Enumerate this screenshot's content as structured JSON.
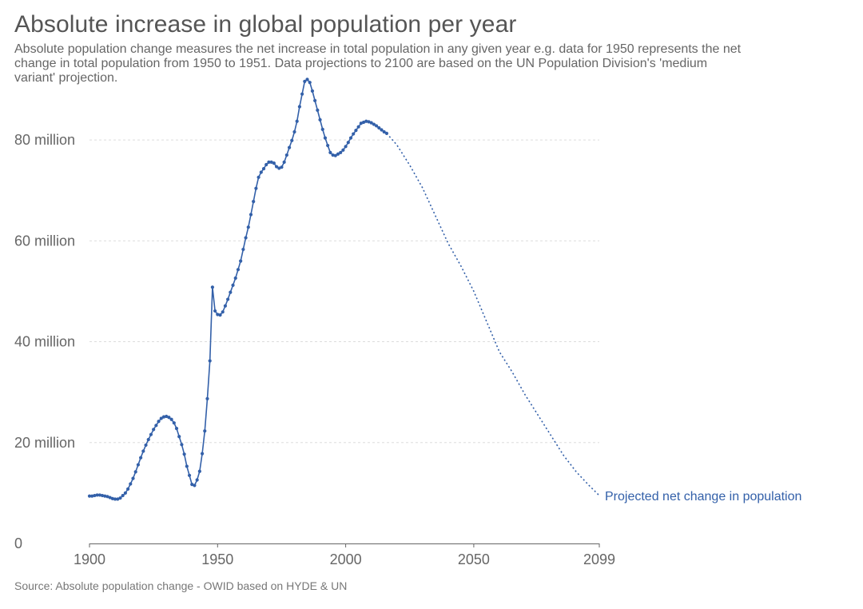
{
  "header": {
    "title": "Absolute increase in global population per year",
    "subtitle": "Absolute population change measures the net increase in total population in any given year e.g. data for 1950 represents the net change in total population from 1950 to 1951. Data projections to 2100 are based on the UN Population Division's 'medium variant' projection."
  },
  "footer": {
    "source": "Source: Absolute population change - OWID based on HYDE & UN"
  },
  "chart_data": {
    "type": "line",
    "title": "Absolute increase in global population per year",
    "xlabel": "",
    "ylabel": "",
    "xlim": [
      1900,
      2099
    ],
    "ylim": [
      0,
      90000000
    ],
    "x_ticks": [
      {
        "value": 1900,
        "label": "1900"
      },
      {
        "value": 1950,
        "label": "1950"
      },
      {
        "value": 2000,
        "label": "2000"
      },
      {
        "value": 2050,
        "label": "2050"
      },
      {
        "value": 2099,
        "label": "2099"
      }
    ],
    "y_ticks": [
      {
        "value": 0,
        "label": "0"
      },
      {
        "value": 20000000,
        "label": "20 million"
      },
      {
        "value": 40000000,
        "label": "40 million"
      },
      {
        "value": 60000000,
        "label": "60 million"
      },
      {
        "value": 80000000,
        "label": "80 million"
      }
    ],
    "grid": true,
    "color": "#3360a9",
    "series": [
      {
        "name": "Projected net change in population",
        "observed": {
          "x": [
            1900,
            1901,
            1902,
            1903,
            1904,
            1905,
            1906,
            1907,
            1908,
            1909,
            1910,
            1911,
            1912,
            1913,
            1914,
            1915,
            1916,
            1917,
            1918,
            1919,
            1920,
            1921,
            1922,
            1923,
            1924,
            1925,
            1926,
            1927,
            1928,
            1929,
            1930,
            1931,
            1932,
            1933,
            1934,
            1935,
            1936,
            1937,
            1938,
            1939,
            1940,
            1941,
            1942,
            1943,
            1944,
            1945,
            1946,
            1947,
            1948,
            1949,
            1950,
            1951,
            1952,
            1953,
            1954,
            1955,
            1956,
            1957,
            1958,
            1959,
            1960,
            1961,
            1962,
            1963,
            1964,
            1965,
            1966,
            1967,
            1968,
            1969,
            1970,
            1971,
            1972,
            1973,
            1974,
            1975,
            1976,
            1977,
            1978,
            1979,
            1980,
            1981,
            1982,
            1983,
            1984,
            1985,
            1986,
            1987,
            1988,
            1989,
            1990,
            1991,
            1992,
            1993,
            1994,
            1995,
            1996,
            1997,
            1998,
            1999,
            2000,
            2001,
            2002,
            2003,
            2004,
            2005,
            2006,
            2007,
            2008,
            2009,
            2010,
            2011,
            2012,
            2013,
            2014,
            2015,
            2016
          ],
          "y": [
            9.4,
            9.4,
            9.5,
            9.6,
            9.6,
            9.5,
            9.4,
            9.3,
            9.1,
            8.9,
            8.8,
            8.8,
            9.0,
            9.5,
            10.0,
            10.8,
            11.8,
            12.9,
            14.2,
            15.6,
            17.0,
            18.3,
            19.5,
            20.6,
            21.6,
            22.6,
            23.4,
            24.2,
            24.8,
            25.1,
            25.2,
            25.0,
            24.6,
            23.9,
            22.8,
            21.2,
            19.6,
            17.7,
            15.3,
            13.5,
            11.7,
            11.5,
            12.6,
            14.3,
            17.8,
            22.3,
            28.7,
            36.2,
            50.8,
            46.1,
            45.4,
            45.3,
            45.9,
            47.1,
            48.4,
            49.8,
            51.2,
            52.6,
            54.3,
            56.0,
            58.3,
            60.6,
            62.7,
            65.2,
            67.8,
            70.4,
            72.6,
            73.6,
            74.3,
            75.1,
            75.6,
            75.6,
            75.4,
            74.7,
            74.4,
            74.6,
            75.6,
            77.0,
            78.5,
            79.9,
            81.6,
            83.7,
            86.6,
            89.1,
            91.6,
            92.0,
            91.4,
            89.7,
            87.8,
            85.9,
            84.0,
            82.1,
            80.4,
            78.9,
            77.5,
            77.0,
            76.9,
            77.2,
            77.5,
            78.0,
            78.7,
            79.5,
            80.4,
            81.2,
            81.9,
            82.6,
            83.3,
            83.5,
            83.7,
            83.6,
            83.4,
            83.1,
            82.8,
            82.4,
            82.0,
            81.6,
            81.3
          ]
        },
        "projected": {
          "x": [
            2016,
            2020,
            2025,
            2030,
            2035,
            2040,
            2045,
            2050,
            2055,
            2060,
            2065,
            2070,
            2075,
            2080,
            2085,
            2090,
            2095,
            2099
          ],
          "y": [
            81.3,
            79.0,
            75.0,
            70.5,
            65.0,
            59.5,
            55.0,
            50.0,
            44.0,
            38.0,
            34.0,
            29.5,
            25.5,
            21.5,
            17.5,
            14.2,
            11.5,
            9.5
          ]
        }
      }
    ],
    "y_unit_note": "y values in millions"
  }
}
